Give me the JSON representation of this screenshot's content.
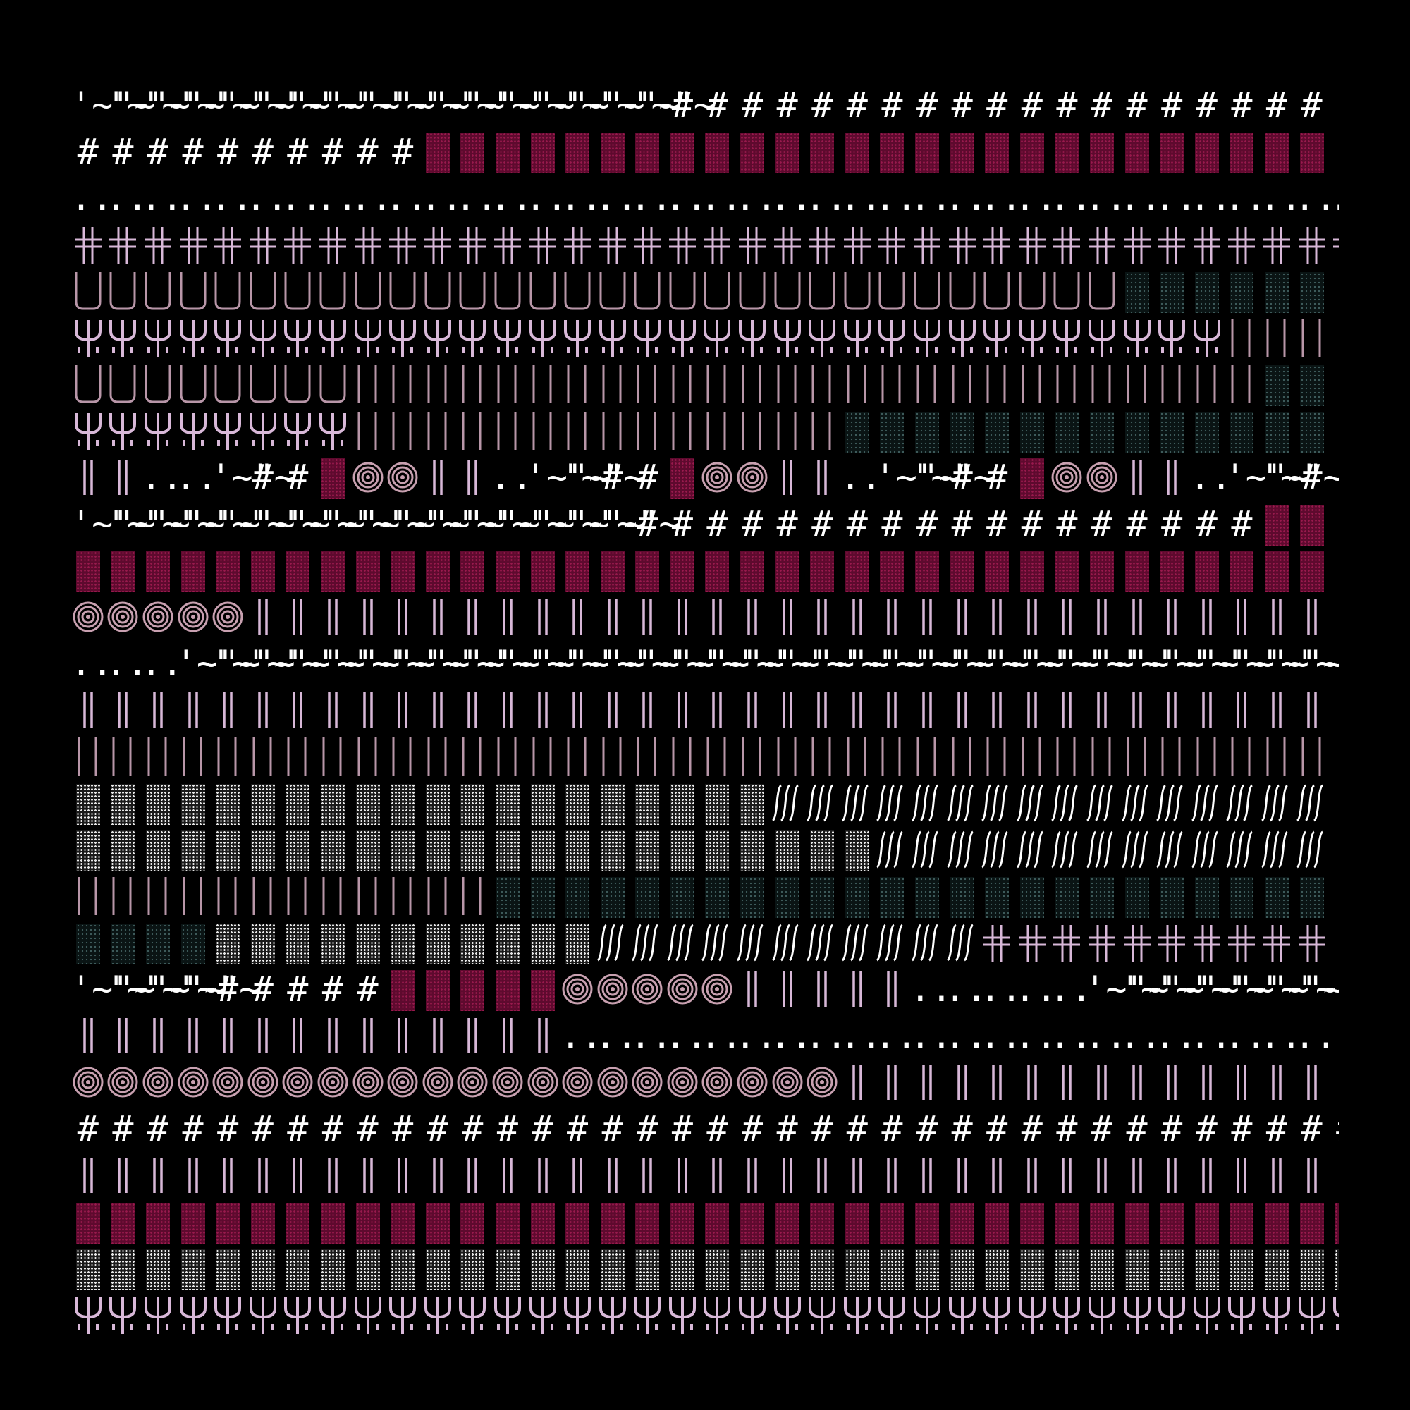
{
  "palette": {
    "background": "#000000",
    "white": "#ffffff",
    "lilac": "#d8b8d8",
    "mauve": "#b896a8",
    "rose": "#c8a0b0",
    "crimson": "#5e0a2e",
    "teal": "#3d5a5a"
  },
  "glyphs": {
    "tilde": "'~\"~",
    "hash": "#",
    "dots": "..",
    "cross": "╬",
    "double_bar": "‖",
    "tall_bars": "| |",
    "slashes": "∫∫∫"
  },
  "icon_names": {
    "fork": "fork-icon",
    "target": "target-icon",
    "u_shape": "u-shape-icon",
    "block": "dotted-block-icon"
  },
  "rows": [
    {
      "runs": [
        {
          "k": "tilde",
          "n": 17,
          "c": "white"
        },
        {
          "k": "hash",
          "n": 19,
          "c": "white"
        }
      ]
    },
    {
      "runs": [
        {
          "k": "hash",
          "n": 10,
          "c": "white"
        },
        {
          "k": "block",
          "n": 26,
          "c": "crimson"
        }
      ]
    },
    {
      "runs": [
        {
          "k": "dots",
          "n": 37,
          "c": "white"
        }
      ]
    },
    {
      "runs": [
        {
          "k": "cross",
          "n": 37,
          "c": "lilac"
        }
      ]
    },
    {
      "runs": [
        {
          "k": "ushape",
          "n": 30,
          "c": "mauve"
        },
        {
          "k": "block",
          "n": 6,
          "c": "teal"
        }
      ]
    },
    {
      "runs": [
        {
          "k": "fork",
          "n": 33,
          "c": "lilac"
        },
        {
          "k": "tallbars",
          "n": 3,
          "c": "mauve"
        }
      ]
    },
    {
      "runs": [
        {
          "k": "ushape",
          "n": 8,
          "c": "mauve"
        },
        {
          "k": "tallbars",
          "n": 26,
          "c": "mauve"
        },
        {
          "k": "block",
          "n": 2,
          "c": "teal"
        }
      ]
    },
    {
      "runs": [
        {
          "k": "fork",
          "n": 8,
          "c": "lilac"
        },
        {
          "k": "tallbars",
          "n": 14,
          "c": "mauve"
        },
        {
          "k": "block",
          "n": 14,
          "c": "teal"
        }
      ]
    },
    {
      "runs": [
        {
          "k": "dbar",
          "n": 2,
          "c": "lilac"
        },
        {
          "k": "dots",
          "n": 2,
          "c": "white"
        },
        {
          "k": "tilde",
          "n": 1,
          "c": "white"
        },
        {
          "k": "hash",
          "n": 2,
          "c": "white"
        },
        {
          "k": "block",
          "n": 1,
          "c": "crimson"
        },
        {
          "k": "target",
          "n": 2,
          "c": "rose"
        },
        {
          "k": "dbar",
          "n": 2,
          "c": "lilac"
        },
        {
          "k": "dots",
          "n": 1,
          "c": "white"
        },
        {
          "k": "tilde",
          "n": 2,
          "c": "white"
        },
        {
          "k": "hash",
          "n": 2,
          "c": "white"
        },
        {
          "k": "block",
          "n": 1,
          "c": "crimson"
        },
        {
          "k": "target",
          "n": 2,
          "c": "rose"
        },
        {
          "k": "dbar",
          "n": 2,
          "c": "lilac"
        },
        {
          "k": "dots",
          "n": 1,
          "c": "white"
        },
        {
          "k": "tilde",
          "n": 2,
          "c": "white"
        },
        {
          "k": "hash",
          "n": 2,
          "c": "white"
        },
        {
          "k": "block",
          "n": 1,
          "c": "crimson"
        },
        {
          "k": "target",
          "n": 2,
          "c": "rose"
        },
        {
          "k": "dbar",
          "n": 2,
          "c": "lilac"
        },
        {
          "k": "dots",
          "n": 1,
          "c": "white"
        },
        {
          "k": "tilde",
          "n": 2,
          "c": "white"
        },
        {
          "k": "hash",
          "n": 1,
          "c": "white"
        }
      ]
    },
    {
      "runs": [
        {
          "k": "tilde",
          "n": 16,
          "c": "white"
        },
        {
          "k": "hash",
          "n": 18,
          "c": "white"
        },
        {
          "k": "block",
          "n": 2,
          "c": "crimson"
        }
      ]
    },
    {
      "runs": [
        {
          "k": "block",
          "n": 36,
          "c": "crimson"
        }
      ]
    },
    {
      "runs": [
        {
          "k": "target",
          "n": 5,
          "c": "rose"
        },
        {
          "k": "dbar",
          "n": 31,
          "c": "lilac"
        }
      ]
    },
    {
      "runs": [
        {
          "k": "dots",
          "n": 3,
          "c": "white"
        },
        {
          "k": "tilde",
          "n": 33,
          "c": "white"
        }
      ]
    },
    {
      "runs": [
        {
          "k": "dbar",
          "n": 36,
          "c": "lilac"
        }
      ]
    },
    {
      "runs": [
        {
          "k": "tallbars",
          "n": 36,
          "c": "mauve"
        }
      ]
    },
    {
      "runs": [
        {
          "k": "block",
          "n": 20,
          "c": "white"
        },
        {
          "k": "slash",
          "n": 16,
          "c": "white"
        }
      ]
    },
    {
      "runs": [
        {
          "k": "block",
          "n": 23,
          "c": "white"
        },
        {
          "k": "slash",
          "n": 13,
          "c": "white"
        }
      ]
    },
    {
      "runs": [
        {
          "k": "tallbars",
          "n": 12,
          "c": "mauve"
        },
        {
          "k": "block",
          "n": 24,
          "c": "teal"
        }
      ]
    },
    {
      "runs": [
        {
          "k": "block",
          "n": 4,
          "c": "teal"
        },
        {
          "k": "block",
          "n": 11,
          "c": "white"
        },
        {
          "k": "slash",
          "n": 11,
          "c": "white"
        },
        {
          "k": "cross",
          "n": 10,
          "c": "lilac"
        }
      ]
    },
    {
      "runs": [
        {
          "k": "tilde",
          "n": 4,
          "c": "white"
        },
        {
          "k": "hash",
          "n": 5,
          "c": "white"
        },
        {
          "k": "block",
          "n": 5,
          "c": "crimson"
        },
        {
          "k": "target",
          "n": 5,
          "c": "rose"
        },
        {
          "k": "dbar",
          "n": 5,
          "c": "lilac"
        },
        {
          "k": "dots",
          "n": 5,
          "c": "white"
        },
        {
          "k": "tilde",
          "n": 7,
          "c": "white"
        }
      ]
    },
    {
      "runs": [
        {
          "k": "dbar",
          "n": 14,
          "c": "lilac"
        },
        {
          "k": "dots",
          "n": 22,
          "c": "white"
        }
      ]
    },
    {
      "runs": [
        {
          "k": "target",
          "n": 22,
          "c": "rose"
        },
        {
          "k": "dbar",
          "n": 14,
          "c": "lilac"
        }
      ]
    },
    {
      "runs": [
        {
          "k": "hash",
          "n": 37,
          "c": "white"
        }
      ]
    },
    {
      "runs": [
        {
          "k": "dbar",
          "n": 36,
          "c": "lilac"
        }
      ]
    },
    {
      "runs": [
        {
          "k": "block",
          "n": 37,
          "c": "crimson"
        }
      ]
    },
    {
      "runs": [
        {
          "k": "block",
          "n": 37,
          "c": "white"
        }
      ]
    },
    {
      "runs": [
        {
          "k": "fork",
          "n": 37,
          "c": "lilac"
        }
      ]
    }
  ]
}
